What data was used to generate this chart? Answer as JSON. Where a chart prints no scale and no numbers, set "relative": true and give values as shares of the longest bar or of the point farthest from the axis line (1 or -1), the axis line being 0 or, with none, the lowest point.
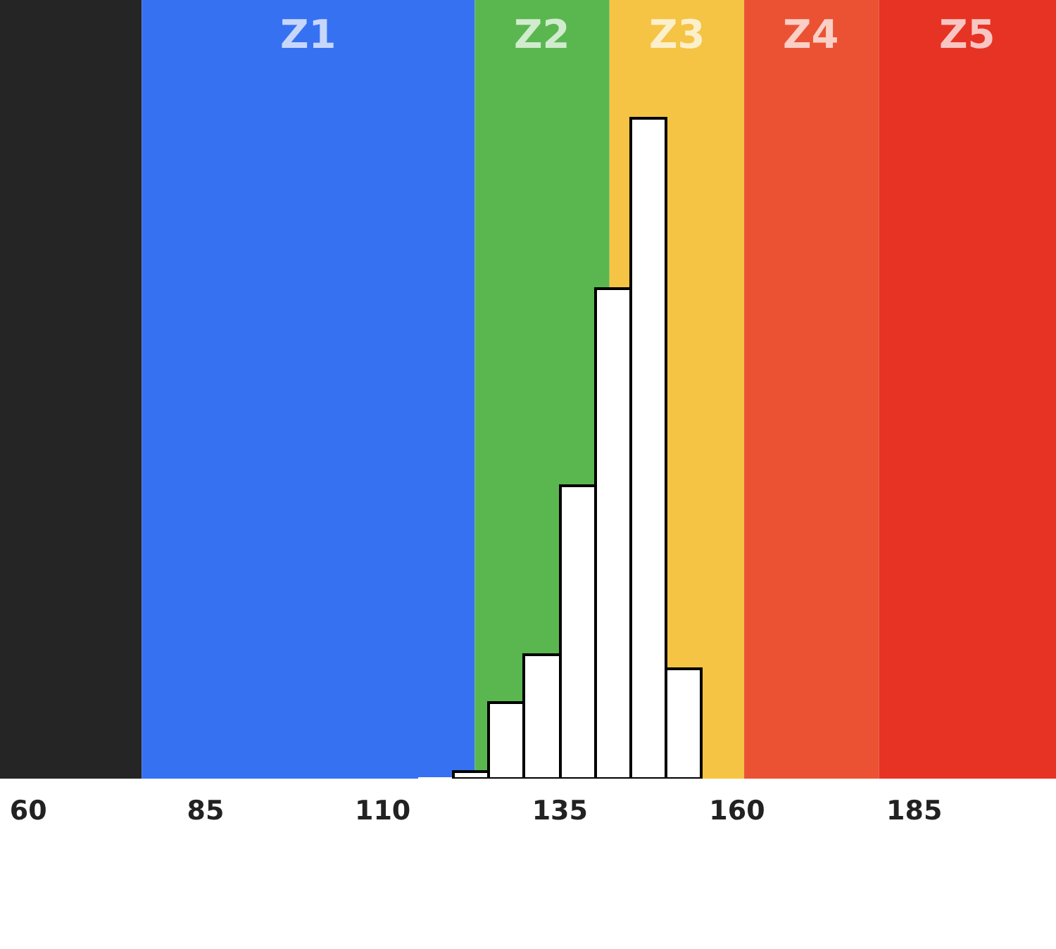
{
  "chart_data": {
    "type": "bar",
    "relative": true,
    "x": [
      117.5,
      122.5,
      127.5,
      132.5,
      137.5,
      142.5,
      147.5,
      152.5
    ],
    "values": [
      0,
      0.011,
      0.115,
      0.188,
      0.443,
      0.742,
      1,
      0.166
    ],
    "color": "#ffffff",
    "xlim": [
      56,
      205
    ],
    "xticks": [
      60,
      85,
      110,
      135,
      160,
      185
    ],
    "bands": [
      {
        "axis": "x",
        "from": 56,
        "to": 76,
        "color": "#252525"
      },
      {
        "axis": "x",
        "from": 76,
        "to": 123,
        "label": "Z1",
        "color": "#3671f2"
      },
      {
        "axis": "x",
        "from": 123,
        "to": 142,
        "label": "Z2",
        "color": "#5ab74f"
      },
      {
        "axis": "x",
        "from": 142,
        "to": 161,
        "label": "Z3",
        "color": "#f5c444"
      },
      {
        "axis": "x",
        "from": 161,
        "to": 180,
        "label": "Z4",
        "color": "#eb5233"
      },
      {
        "axis": "x",
        "from": 180,
        "to": 205,
        "label": "Z5",
        "color": "#e73324"
      }
    ]
  }
}
